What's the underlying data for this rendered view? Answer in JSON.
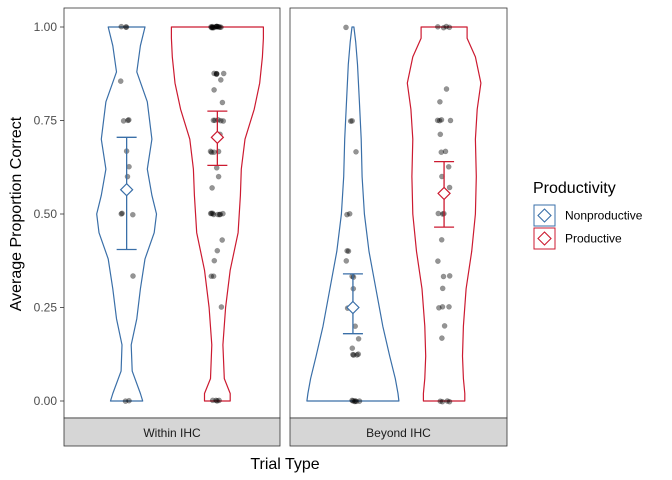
{
  "chart_data": {
    "type": "violin",
    "xlabel": "Trial Type",
    "ylabel": "Average Proportion Correct",
    "ylim": [
      0,
      1
    ],
    "yticks": [
      "0.00",
      "0.25",
      "0.50",
      "0.75",
      "1.00"
    ],
    "grid": false,
    "legend": {
      "title": "Productivity",
      "position": "right",
      "entries": [
        {
          "name": "Nonproductive",
          "color": "#3a6fa8"
        },
        {
          "name": "Productive",
          "color": "#cc1a30"
        }
      ]
    },
    "panels": [
      {
        "label": "Within IHC",
        "groups": [
          {
            "series": "Nonproductive",
            "mean": 0.565,
            "ci_low": 0.405,
            "ci_high": 0.705,
            "density_y": [
              0.0,
              0.02,
              0.08,
              0.15,
              0.22,
              0.3,
              0.38,
              0.45,
              0.5,
              0.55,
              0.62,
              0.7,
              0.8,
              0.88,
              0.95,
              1.0
            ],
            "density_w": [
              0.35,
              0.3,
              0.12,
              0.1,
              0.22,
              0.3,
              0.4,
              0.6,
              0.65,
              0.55,
              0.45,
              0.55,
              0.45,
              0.22,
              0.3,
              0.4
            ],
            "points": [
              1.0,
              1.0,
              1.0,
              0.857,
              0.75,
              0.75,
              0.75,
              0.667,
              0.625,
              0.6,
              0.5,
              0.5,
              0.5,
              0.333,
              0.0,
              0.0
            ]
          },
          {
            "series": "Productive",
            "mean": 0.705,
            "ci_low": 0.63,
            "ci_high": 0.775,
            "density_y": [
              0.0,
              0.02,
              0.06,
              0.15,
              0.25,
              0.35,
              0.45,
              0.55,
              0.62,
              0.7,
              0.78,
              0.85,
              0.92,
              0.97,
              1.0
            ],
            "density_w": [
              0.28,
              0.28,
              0.15,
              0.12,
              0.18,
              0.28,
              0.45,
              0.5,
              0.52,
              0.6,
              0.8,
              0.92,
              0.98,
              1.0,
              1.0
            ],
            "points": [
              1.0,
              1.0,
              1.0,
              1.0,
              1.0,
              1.0,
              1.0,
              1.0,
              1.0,
              1.0,
              1.0,
              1.0,
              1.0,
              1.0,
              0.875,
              0.875,
              0.875,
              0.875,
              0.875,
              0.857,
              0.833,
              0.8,
              0.75,
              0.75,
              0.75,
              0.75,
              0.75,
              0.714,
              0.667,
              0.667,
              0.667,
              0.667,
              0.625,
              0.6,
              0.571,
              0.5,
              0.5,
              0.5,
              0.5,
              0.5,
              0.5,
              0.5,
              0.5,
              0.429,
              0.4,
              0.375,
              0.333,
              0.333,
              0.25,
              0.0,
              0.0,
              0.0,
              0.0
            ]
          }
        ]
      },
      {
        "label": "Beyond IHC",
        "groups": [
          {
            "series": "Nonproductive",
            "mean": 0.25,
            "ci_low": 0.18,
            "ci_high": 0.34,
            "density_y": [
              0.0,
              0.02,
              0.06,
              0.12,
              0.2,
              0.3,
              0.4,
              0.5,
              0.6,
              0.7,
              0.8,
              0.9,
              0.96,
              1.0
            ],
            "density_w": [
              1.0,
              0.98,
              0.92,
              0.8,
              0.65,
              0.5,
              0.35,
              0.25,
              0.2,
              0.18,
              0.14,
              0.1,
              0.06,
              0.02
            ],
            "points": [
              1.0,
              0.75,
              0.75,
              0.667,
              0.5,
              0.5,
              0.4,
              0.4,
              0.375,
              0.333,
              0.333,
              0.3,
              0.25,
              0.2,
              0.167,
              0.143,
              0.125,
              0.125,
              0.125,
              0.125,
              0.0,
              0.0,
              0.0,
              0.0,
              0.0,
              0.0
            ]
          },
          {
            "series": "Productive",
            "mean": 0.555,
            "ci_low": 0.465,
            "ci_high": 0.64,
            "density_y": [
              0.0,
              0.02,
              0.06,
              0.12,
              0.2,
              0.3,
              0.4,
              0.5,
              0.6,
              0.7,
              0.78,
              0.85,
              0.92,
              0.97,
              1.0
            ],
            "density_w": [
              0.45,
              0.45,
              0.42,
              0.4,
              0.42,
              0.48,
              0.6,
              0.68,
              0.7,
              0.68,
              0.72,
              0.8,
              0.68,
              0.5,
              0.5
            ],
            "points": [
              1.0,
              1.0,
              1.0,
              1.0,
              0.833,
              0.8,
              0.75,
              0.75,
              0.75,
              0.75,
              0.714,
              0.667,
              0.667,
              0.625,
              0.6,
              0.571,
              0.5,
              0.5,
              0.5,
              0.429,
              0.375,
              0.333,
              0.333,
              0.3,
              0.25,
              0.25,
              0.25,
              0.2,
              0.167,
              0.0,
              0.0,
              0.0,
              0.0
            ]
          }
        ]
      }
    ]
  }
}
